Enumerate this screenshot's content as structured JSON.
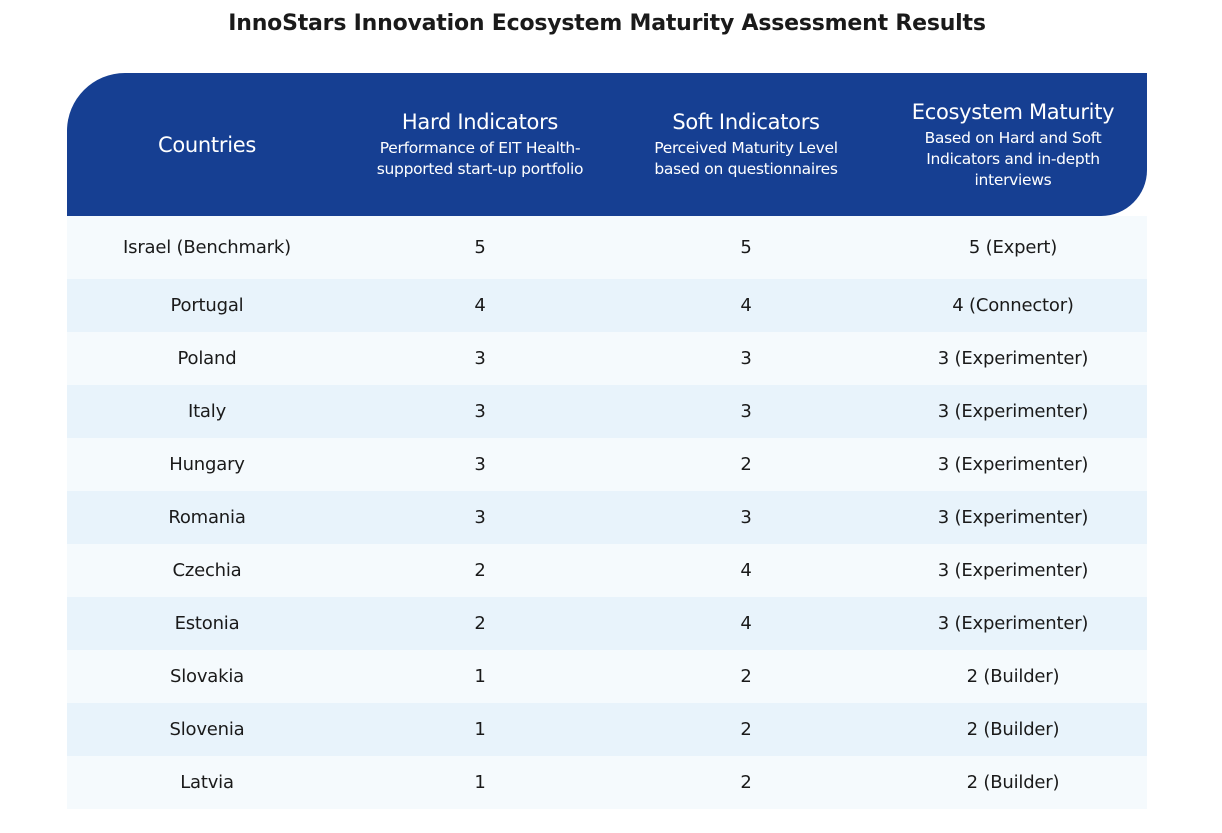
{
  "title": "InnoStars Innovation Ecosystem Maturity Assessment Results",
  "table": {
    "headers": [
      {
        "main": "Countries",
        "sub": ""
      },
      {
        "main": "Hard Indicators",
        "sub": "Performance of EIT Health-supported start-up portfolio"
      },
      {
        "main": "Soft Indicators",
        "sub": "Perceived Maturity Level based on questionnaires"
      },
      {
        "main": "Ecosystem Maturity",
        "sub": "Based on Hard and Soft Indicators and in-depth interviews"
      }
    ],
    "rows": [
      {
        "country": "Israel (Benchmark)",
        "hard": "5",
        "soft": "5",
        "maturity": "5 (Expert)"
      },
      {
        "country": "Portugal",
        "hard": "4",
        "soft": "4",
        "maturity": "4 (Connector)"
      },
      {
        "country": "Poland",
        "hard": "3",
        "soft": "3",
        "maturity": "3 (Experimenter)"
      },
      {
        "country": "Italy",
        "hard": "3",
        "soft": "3",
        "maturity": "3 (Experimenter)"
      },
      {
        "country": "Hungary",
        "hard": "3",
        "soft": "2",
        "maturity": "3 (Experimenter)"
      },
      {
        "country": "Romania",
        "hard": "3",
        "soft": "3",
        "maturity": "3 (Experimenter)"
      },
      {
        "country": "Czechia",
        "hard": "2",
        "soft": "4",
        "maturity": "3 (Experimenter)"
      },
      {
        "country": "Estonia",
        "hard": "2",
        "soft": "4",
        "maturity": "3 (Experimenter)"
      },
      {
        "country": "Slovakia",
        "hard": "1",
        "soft": "2",
        "maturity": "2 (Builder)"
      },
      {
        "country": "Slovenia",
        "hard": "1",
        "soft": "2",
        "maturity": "2 (Builder)"
      },
      {
        "country": "Latvia",
        "hard": "1",
        "soft": "2",
        "maturity": "2 (Builder)"
      }
    ]
  },
  "colors": {
    "header_bg": "#163f92",
    "row_odd": "#f5fafd",
    "row_even": "#e8f3fb"
  }
}
